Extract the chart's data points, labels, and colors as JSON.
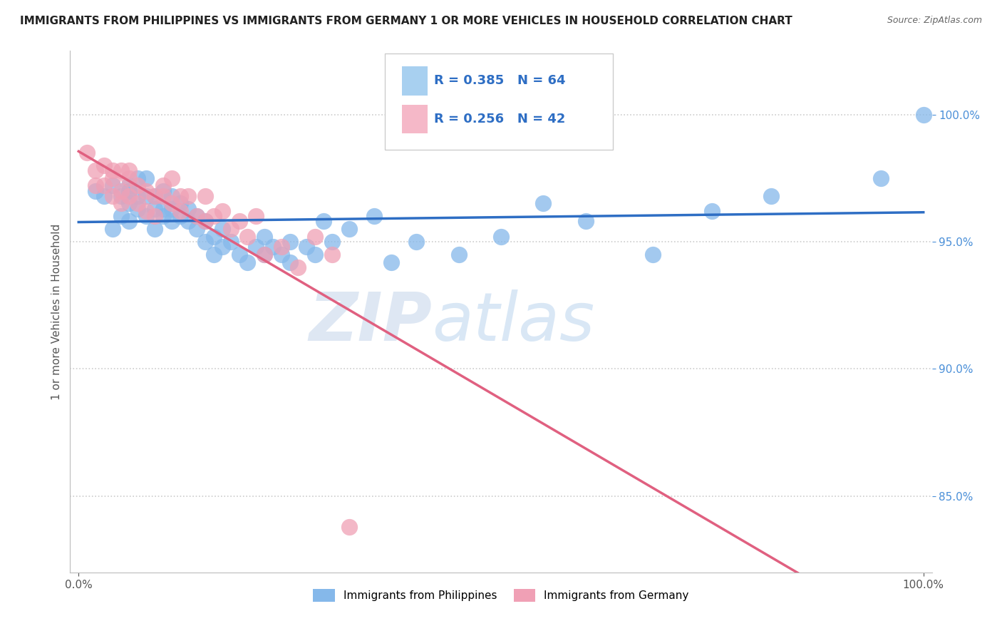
{
  "title": "IMMIGRANTS FROM PHILIPPINES VS IMMIGRANTS FROM GERMANY 1 OR MORE VEHICLES IN HOUSEHOLD CORRELATION CHART",
  "source": "Source: ZipAtlas.com",
  "ylabel": "1 or more Vehicles in Household",
  "watermark_zip": "ZIP",
  "watermark_atlas": "atlas",
  "background_color": "#FFFFFF",
  "grid_color": "#CCCCCC",
  "series_philippines": {
    "R": 0.385,
    "N": 64,
    "color": "#85B8EA",
    "line_color": "#2E6EC4",
    "x": [
      0.02,
      0.03,
      0.04,
      0.04,
      0.05,
      0.05,
      0.06,
      0.06,
      0.06,
      0.06,
      0.07,
      0.07,
      0.07,
      0.08,
      0.08,
      0.08,
      0.09,
      0.09,
      0.09,
      0.1,
      0.1,
      0.1,
      0.11,
      0.11,
      0.11,
      0.12,
      0.12,
      0.13,
      0.13,
      0.14,
      0.14,
      0.15,
      0.15,
      0.16,
      0.16,
      0.17,
      0.17,
      0.18,
      0.19,
      0.2,
      0.21,
      0.22,
      0.22,
      0.23,
      0.24,
      0.25,
      0.25,
      0.27,
      0.28,
      0.29,
      0.3,
      0.32,
      0.35,
      0.37,
      0.4,
      0.45,
      0.5,
      0.55,
      0.6,
      0.68,
      0.75,
      0.82,
      0.95,
      1.0
    ],
    "y": [
      0.97,
      0.968,
      0.972,
      0.955,
      0.968,
      0.96,
      0.972,
      0.965,
      0.958,
      0.97,
      0.963,
      0.968,
      0.975,
      0.96,
      0.968,
      0.975,
      0.963,
      0.955,
      0.968,
      0.96,
      0.963,
      0.97,
      0.958,
      0.963,
      0.968,
      0.96,
      0.965,
      0.958,
      0.963,
      0.955,
      0.96,
      0.95,
      0.958,
      0.945,
      0.952,
      0.948,
      0.955,
      0.95,
      0.945,
      0.942,
      0.948,
      0.945,
      0.952,
      0.948,
      0.945,
      0.95,
      0.942,
      0.948,
      0.945,
      0.958,
      0.95,
      0.955,
      0.96,
      0.942,
      0.95,
      0.945,
      0.952,
      0.965,
      0.958,
      0.945,
      0.962,
      0.968,
      0.975,
      1.0
    ]
  },
  "series_germany": {
    "R": 0.256,
    "N": 42,
    "color": "#F0A0B5",
    "line_color": "#E06080",
    "x": [
      0.01,
      0.02,
      0.02,
      0.03,
      0.03,
      0.04,
      0.04,
      0.04,
      0.05,
      0.05,
      0.05,
      0.06,
      0.06,
      0.06,
      0.07,
      0.07,
      0.08,
      0.08,
      0.09,
      0.09,
      0.1,
      0.1,
      0.11,
      0.11,
      0.12,
      0.12,
      0.13,
      0.14,
      0.15,
      0.15,
      0.16,
      0.17,
      0.18,
      0.19,
      0.2,
      0.21,
      0.22,
      0.24,
      0.26,
      0.28,
      0.3,
      0.32
    ],
    "y": [
      0.985,
      0.978,
      0.972,
      0.98,
      0.972,
      0.975,
      0.968,
      0.978,
      0.97,
      0.978,
      0.965,
      0.975,
      0.968,
      0.978,
      0.972,
      0.965,
      0.97,
      0.962,
      0.968,
      0.96,
      0.972,
      0.968,
      0.965,
      0.975,
      0.968,
      0.962,
      0.968,
      0.96,
      0.958,
      0.968,
      0.96,
      0.962,
      0.955,
      0.958,
      0.952,
      0.96,
      0.945,
      0.948,
      0.94,
      0.952,
      0.945,
      0.838
    ]
  },
  "legend_box_color_philippines": "#A8D0F0",
  "legend_box_color_germany": "#F5B8C8",
  "legend_text_color": "#2E6EC4",
  "ytick_color": "#4A8FD8"
}
